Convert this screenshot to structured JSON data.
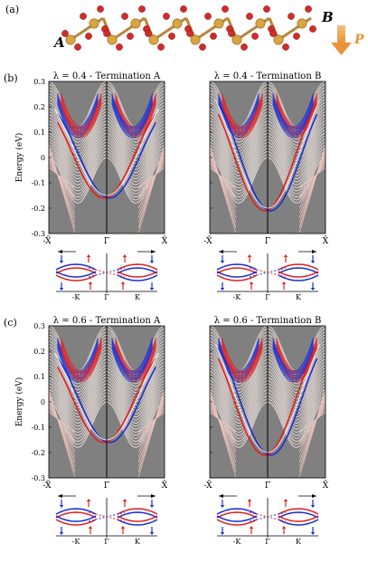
{
  "figure": {
    "panel_labels": [
      "(a)",
      "(b)",
      "(c)"
    ],
    "structure": {
      "label_A": "A",
      "label_B": "B",
      "label_P": "P"
    },
    "energy_axis_label": "Energy (eV)",
    "energy_ticks": [
      "0.3",
      "0.2",
      "0.1",
      "0",
      "-0.1",
      "-0.2",
      "-0.3"
    ],
    "k_labels": {
      "left": "-X̄",
      "center": "Γ̄",
      "right": "X̄"
    },
    "inset_labels": {
      "left": "-K",
      "center": "Γ",
      "right": "K"
    },
    "panels": [
      {
        "title": "λ = 0.4  -  Termination A"
      },
      {
        "title": "λ = 0.4  -  Termination B"
      },
      {
        "title": "λ = 0.6  -  Termination A"
      },
      {
        "title": "λ = 0.6  -  Termination B"
      }
    ],
    "colors": {
      "background": "#808080",
      "spin_up": "#e02020",
      "spin_down": "#1a2fd0",
      "arrow_P": "#e8923a",
      "atom_gold": "#d9a441",
      "atom_red": "#d42a2a"
    }
  }
}
